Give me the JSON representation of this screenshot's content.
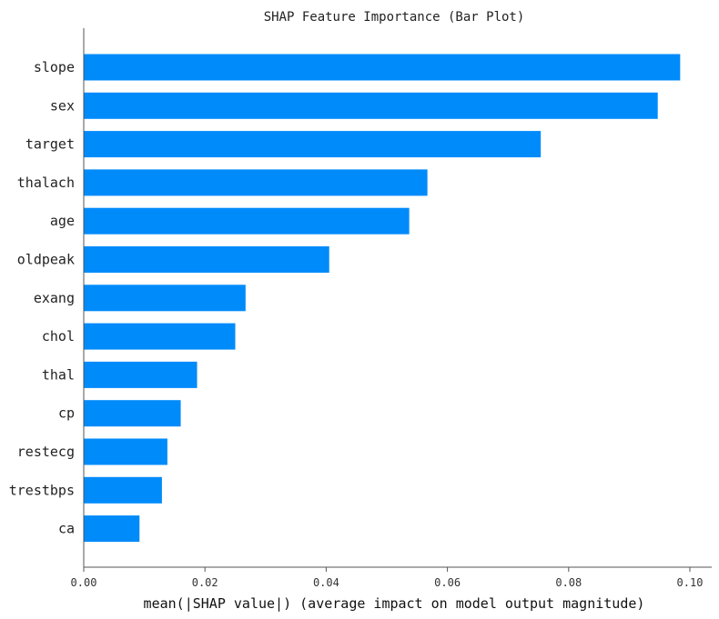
{
  "chart_data": {
    "type": "bar",
    "orientation": "horizontal",
    "title": "SHAP Feature Importance (Bar Plot)",
    "xlabel": "mean(|SHAP value|) (average impact on model output magnitude)",
    "ylabel": "",
    "xlim": [
      0,
      0.1
    ],
    "xticks": [
      "0.00",
      "0.02",
      "0.04",
      "0.06",
      "0.08",
      "0.10"
    ],
    "categories": [
      "slope",
      "sex",
      "target",
      "thalach",
      "age",
      "oldpeak",
      "exang",
      "chol",
      "thal",
      "cp",
      "restecg",
      "trestbps",
      "ca"
    ],
    "values": [
      0.0984,
      0.0947,
      0.0754,
      0.0567,
      0.0537,
      0.0405,
      0.0267,
      0.025,
      0.0187,
      0.016,
      0.0138,
      0.0129,
      0.0092
    ],
    "bar_color": "#008bfb",
    "grid": false,
    "legend": "none"
  }
}
